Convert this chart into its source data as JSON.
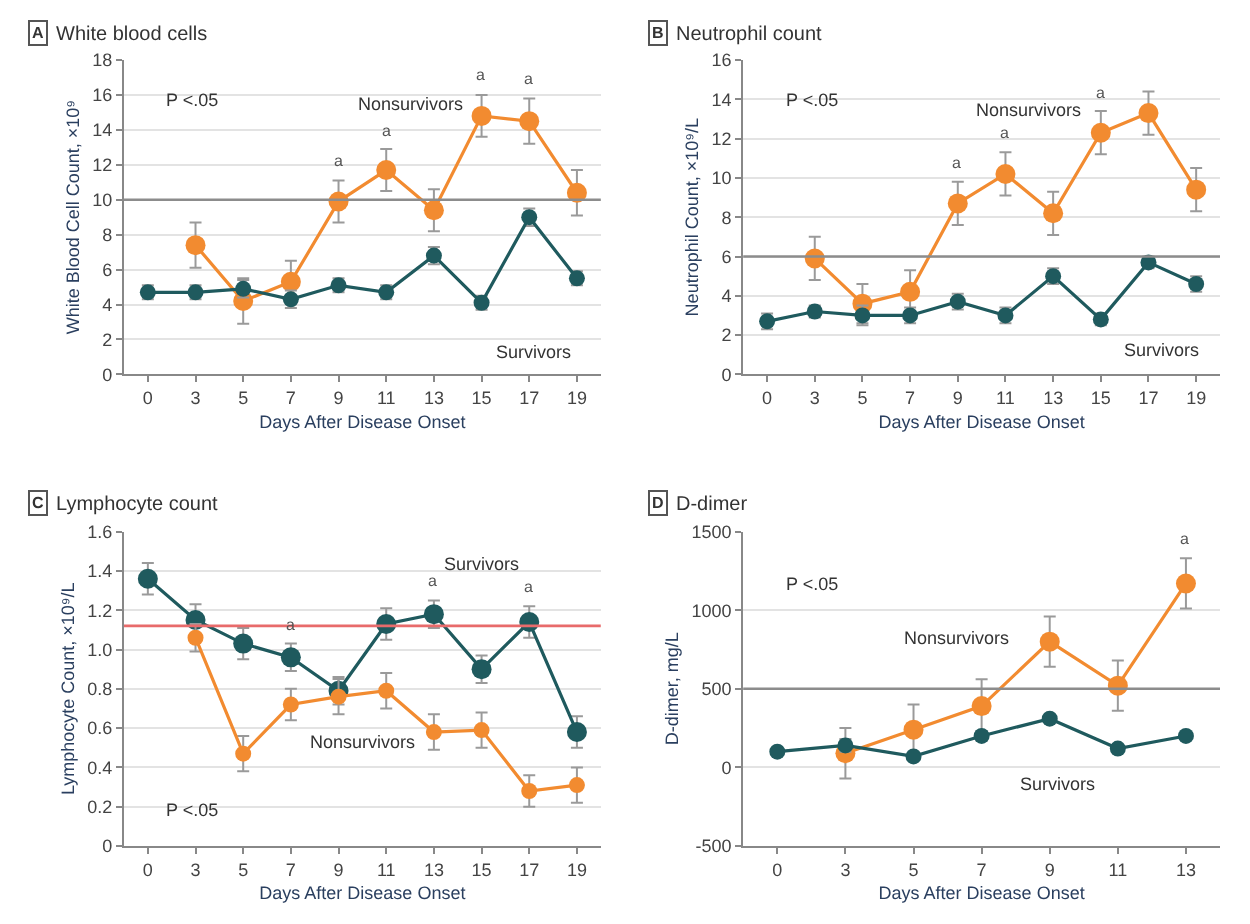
{
  "chart_data": [
    {
      "type": "line",
      "title": "White blood cells",
      "xlabel": "Days After Disease Onset",
      "ylabel": "White Blood Cell Count, ×10⁹",
      "categories": [
        "0",
        "3",
        "5",
        "7",
        "9",
        "11",
        "13",
        "15",
        "17",
        "19"
      ],
      "series": [
        {
          "name": "Nonsurvivors",
          "color": "#f28b30",
          "values": [
            null,
            7.4,
            4.2,
            5.3,
            9.9,
            11.7,
            9.4,
            14.8,
            14.5,
            10.4
          ],
          "errors": [
            null,
            1.3,
            1.3,
            1.2,
            1.2,
            1.2,
            1.2,
            1.2,
            1.3,
            1.3
          ]
        },
        {
          "name": "Survivors",
          "color": "#1f5a5e",
          "values": [
            4.7,
            4.7,
            4.9,
            4.3,
            5.1,
            4.7,
            6.8,
            4.1,
            9.0,
            5.5
          ],
          "errors": [
            0.4,
            0.4,
            0.5,
            0.5,
            0.4,
            0.4,
            0.5,
            0.4,
            0.5,
            0.4
          ]
        }
      ],
      "ylim": [
        0,
        18
      ],
      "yticks": [
        0,
        2,
        4,
        6,
        8,
        10,
        12,
        14,
        16,
        18
      ],
      "grid": "y",
      "marker": "circle",
      "legend": false,
      "ref_lines": [
        {
          "axis": "y",
          "value": 10,
          "color": "#8c8c8c"
        }
      ],
      "annotations": [
        "A",
        "P <.05",
        {
          "text": "a",
          "x": "9",
          "y": 9.9
        },
        {
          "text": "a",
          "x": "11",
          "y": 11.7
        },
        {
          "text": "a",
          "x": "15",
          "y": 14.8
        },
        {
          "text": "a",
          "x": "17",
          "y": 14.5
        }
      ]
    },
    {
      "type": "line",
      "title": "Neutrophil count",
      "xlabel": "Days After Disease Onset",
      "ylabel": "Neutrophil Count, ×10⁹/L",
      "categories": [
        "0",
        "3",
        "5",
        "7",
        "9",
        "11",
        "13",
        "15",
        "17",
        "19"
      ],
      "series": [
        {
          "name": "Nonsurvivors",
          "color": "#f28b30",
          "values": [
            null,
            5.9,
            3.6,
            4.2,
            8.7,
            10.2,
            8.2,
            12.3,
            13.3,
            9.4
          ],
          "errors": [
            null,
            1.1,
            1.0,
            1.1,
            1.1,
            1.1,
            1.1,
            1.1,
            1.1,
            1.1
          ]
        },
        {
          "name": "Survivors",
          "color": "#1f5a5e",
          "values": [
            2.7,
            3.2,
            3.0,
            3.0,
            3.7,
            3.0,
            5.0,
            2.8,
            5.7,
            4.6
          ],
          "errors": [
            0.4,
            0.3,
            0.5,
            0.4,
            0.4,
            0.4,
            0.4,
            0.3,
            0.3,
            0.4
          ]
        }
      ],
      "ylim": [
        0,
        16
      ],
      "yticks": [
        0,
        2,
        4,
        6,
        8,
        10,
        12,
        14,
        16
      ],
      "grid": "y",
      "marker": "circle",
      "legend": false,
      "ref_lines": [
        {
          "axis": "y",
          "value": 6,
          "color": "#8c8c8c"
        }
      ],
      "annotations": [
        "B",
        "P <.05",
        {
          "text": "a",
          "x": "9",
          "y": 8.7
        },
        {
          "text": "a",
          "x": "11",
          "y": 10.2
        },
        {
          "text": "a",
          "x": "15",
          "y": 12.3
        }
      ]
    },
    {
      "type": "line",
      "title": "Lymphocyte count",
      "xlabel": "Days After Disease Onset",
      "ylabel": "Lymphocyte Count, ×10⁹/L",
      "categories": [
        "0",
        "3",
        "5",
        "7",
        "9",
        "11",
        "13",
        "15",
        "17",
        "19"
      ],
      "series": [
        {
          "name": "Survivors",
          "color": "#1f5a5e",
          "values": [
            1.36,
            1.15,
            1.03,
            0.96,
            0.79,
            1.13,
            1.18,
            0.9,
            1.14,
            0.58
          ],
          "errors": [
            0.08,
            0.08,
            0.08,
            0.07,
            0.07,
            0.08,
            0.07,
            0.07,
            0.08,
            0.08
          ]
        },
        {
          "name": "Nonsurvivors",
          "color": "#f28b30",
          "values": [
            null,
            1.06,
            0.47,
            0.72,
            0.76,
            0.79,
            0.58,
            0.59,
            0.28,
            0.31
          ],
          "errors": [
            null,
            0.07,
            0.09,
            0.08,
            0.09,
            0.09,
            0.09,
            0.09,
            0.08,
            0.09
          ]
        }
      ],
      "ylim": [
        0,
        1.6
      ],
      "yticks": [
        0,
        0.2,
        0.4,
        0.6,
        0.8,
        {
          "value": 1.0,
          "label": "1.0"
        },
        1.2,
        1.4,
        1.6
      ],
      "grid": "y",
      "marker": "circle",
      "legend": false,
      "ref_lines": [
        {
          "axis": "y",
          "value": 1.12,
          "color": "#e86b6b"
        }
      ],
      "annotations": [
        "C",
        "P <.05",
        {
          "text": "a",
          "x": "7",
          "y": 0.96
        },
        {
          "text": "a",
          "x": "13",
          "y": 1.18
        },
        {
          "text": "a",
          "x": "17",
          "y": 1.14
        }
      ]
    },
    {
      "type": "line",
      "title": "D-dimer",
      "xlabel": "Days After Disease Onset",
      "ylabel": "D-dimer, mg/L",
      "categories": [
        "0",
        "3",
        "5",
        "7",
        "9",
        "11",
        "13"
      ],
      "series": [
        {
          "name": "Nonsurvivors",
          "color": "#f28b30",
          "values": [
            null,
            90,
            240,
            390,
            800,
            520,
            1170
          ],
          "errors": [
            null,
            160,
            160,
            170,
            160,
            160,
            160
          ]
        },
        {
          "name": "Survivors",
          "color": "#1f5a5e",
          "values": [
            100,
            140,
            70,
            200,
            310,
            120,
            200
          ],
          "errors": [
            20,
            40,
            20,
            30,
            20,
            20,
            20
          ]
        }
      ],
      "ylim": [
        -500,
        1500
      ],
      "yticks": [
        -500,
        0,
        500,
        1000,
        1500
      ],
      "grid": "y",
      "marker": "circle",
      "legend": false,
      "ref_lines": [
        {
          "axis": "y",
          "value": 500,
          "color": "#8c8c8c"
        }
      ],
      "annotations": [
        "D",
        "P <.05",
        {
          "text": "a",
          "x": "13",
          "y": 1170
        }
      ]
    }
  ]
}
